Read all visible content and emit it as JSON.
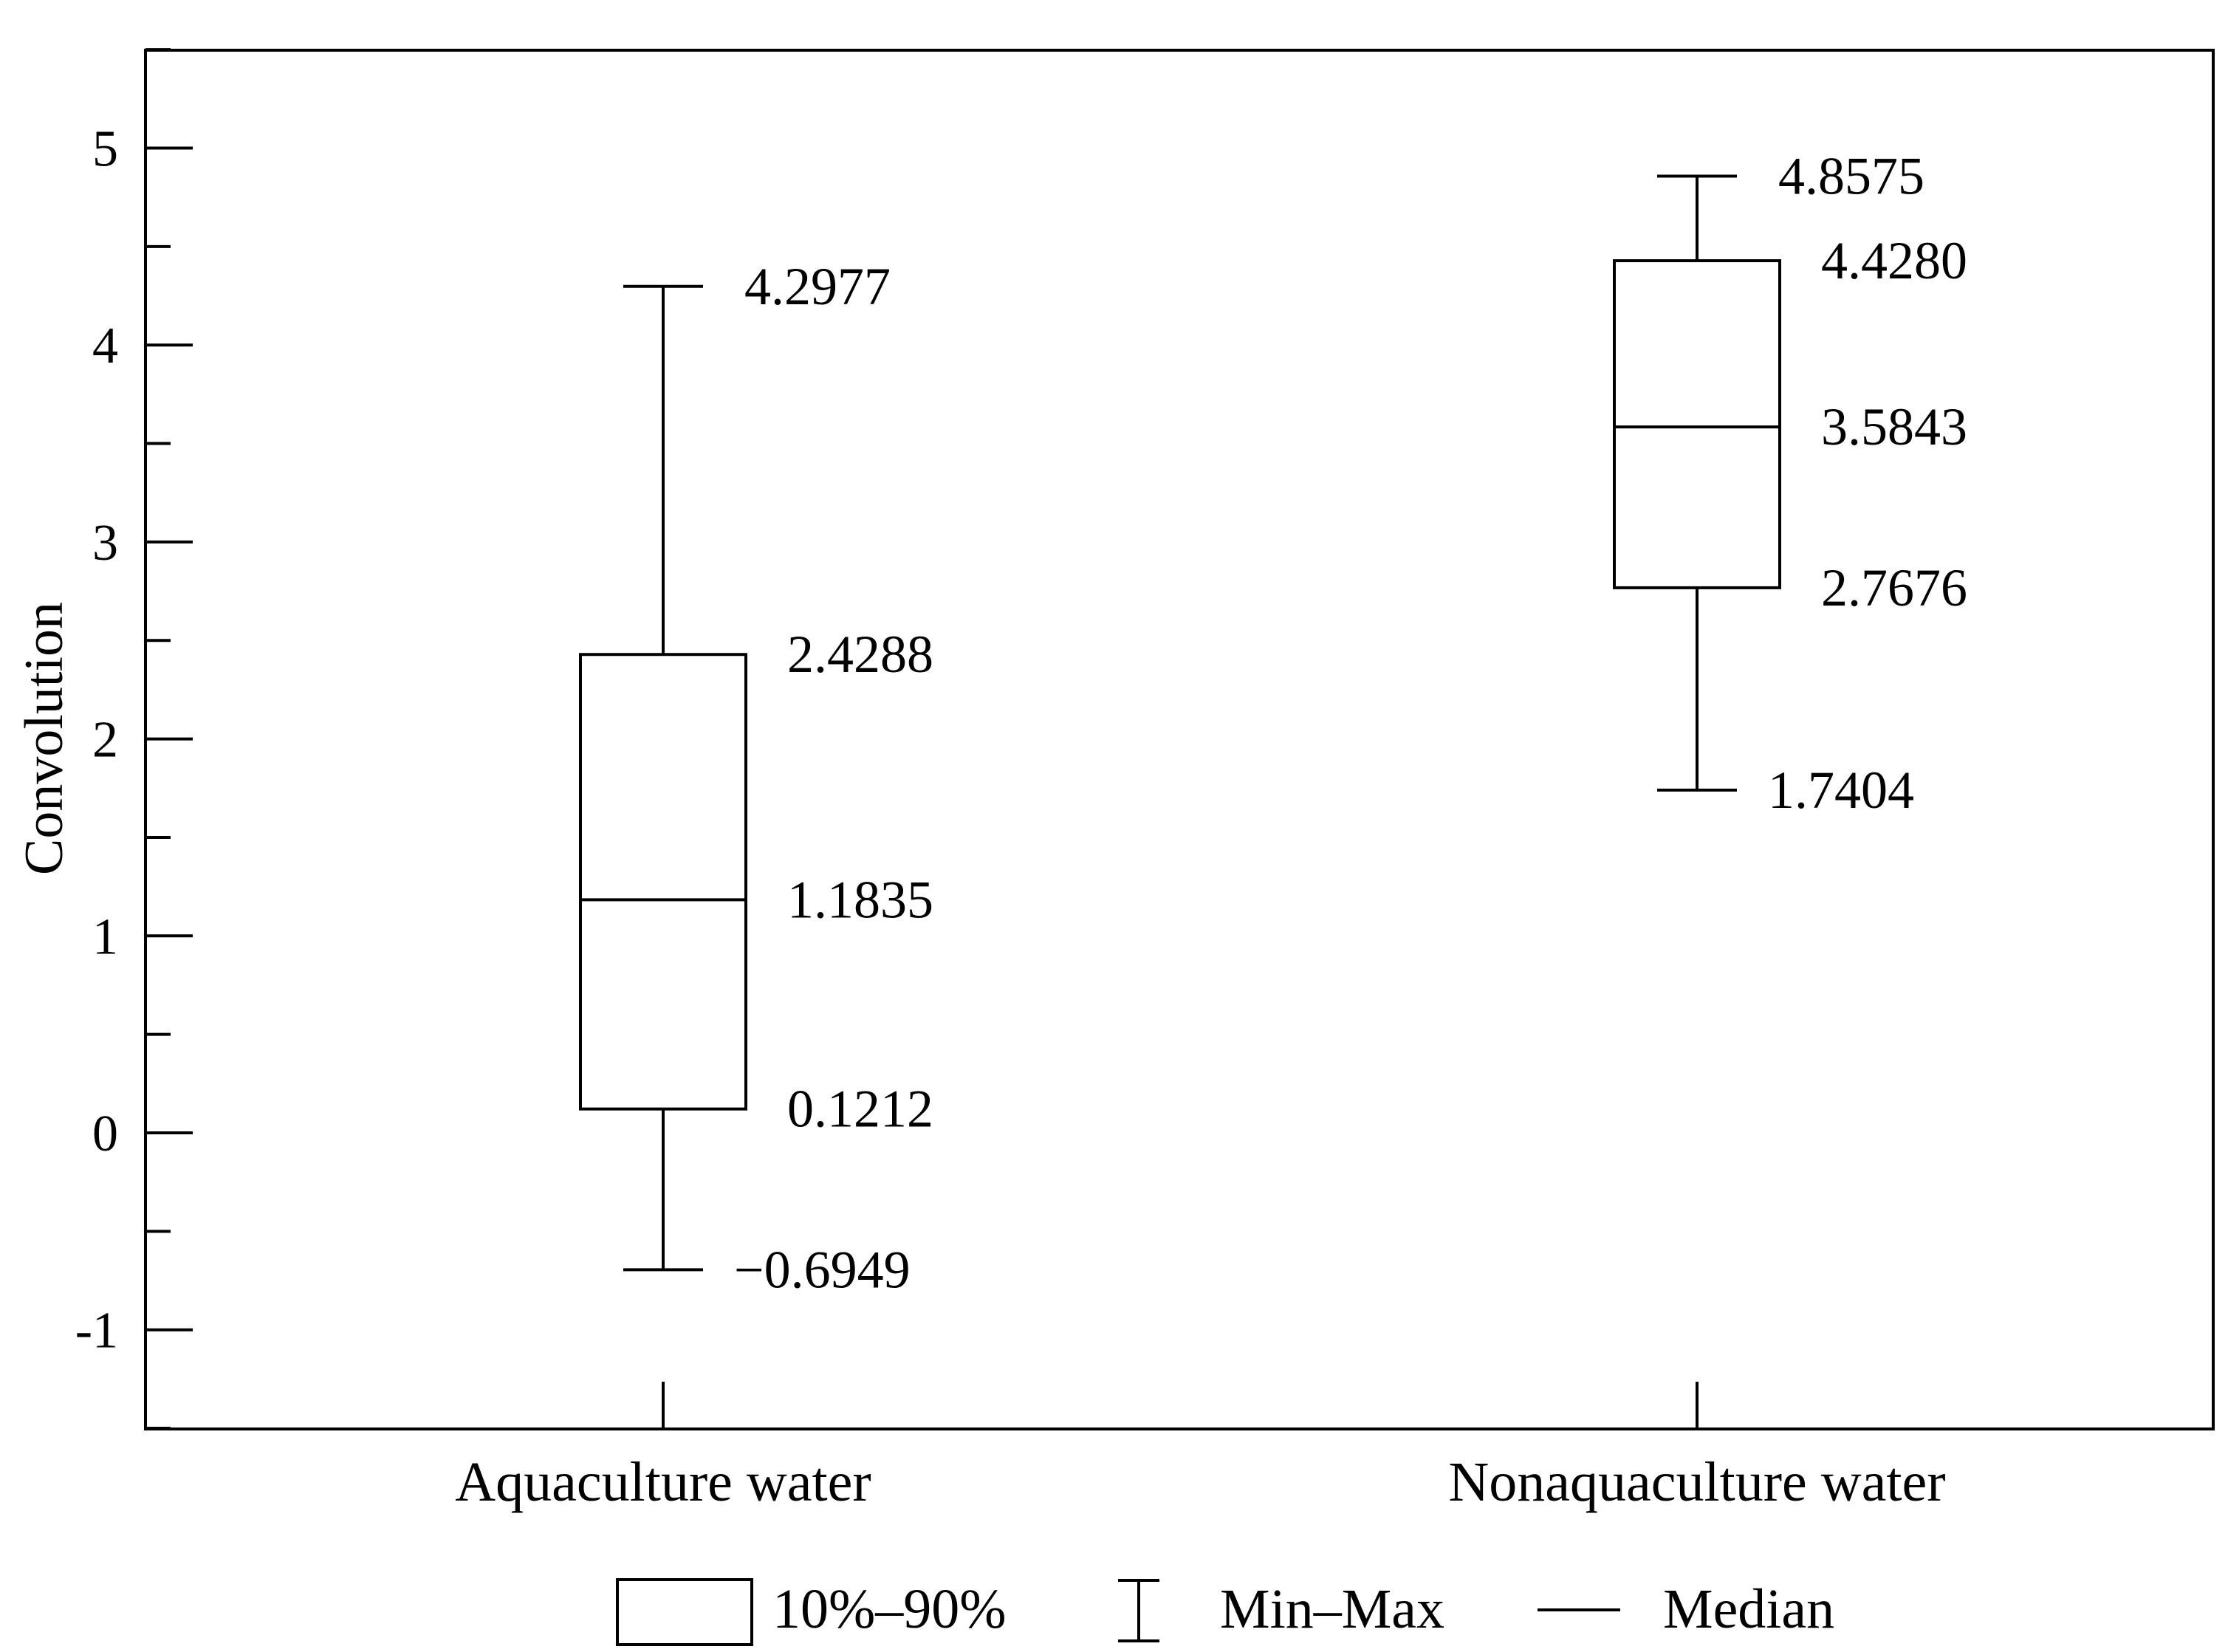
{
  "chart_data": {
    "type": "box",
    "ylabel": "Convolution",
    "ylim": [
      -1.5,
      5.5
    ],
    "yticks": [
      -1,
      0,
      1,
      2,
      3,
      4,
      5
    ],
    "ytick_labels": [
      "-1",
      "0",
      "1",
      "2",
      "3",
      "4",
      "5"
    ],
    "categories": [
      "Aquaculture water",
      "Nonaquaculture water"
    ],
    "boxes": [
      {
        "category": "Aquaculture water",
        "min": -0.6949,
        "p10": 0.1212,
        "median": 1.1835,
        "p90": 2.4288,
        "max": 4.2977,
        "labels": {
          "max": "4.2977",
          "p90": "2.4288",
          "median": "1.1835",
          "p10": "0.1212",
          "min": "−0.6949"
        }
      },
      {
        "category": "Nonaquaculture water",
        "min": 1.7404,
        "p10": 2.7676,
        "median": 3.5843,
        "p90": 4.428,
        "max": 4.8575,
        "labels": {
          "max": "4.8575",
          "p90": "4.4280",
          "median": "3.5843",
          "p10": "2.7676",
          "min": "1.7404"
        }
      }
    ],
    "legend": {
      "placement": "bottom",
      "entries": [
        "10%–90%",
        "Min–Max",
        "Median"
      ]
    }
  }
}
